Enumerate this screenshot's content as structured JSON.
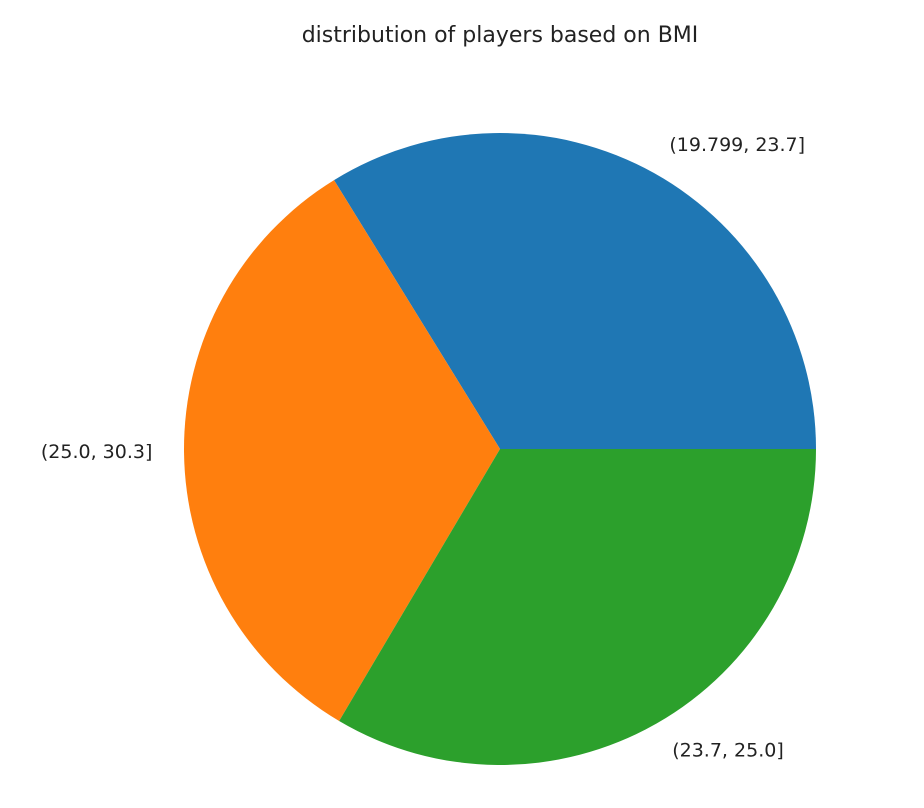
{
  "chart_data": {
    "type": "pie",
    "title": "distribution of players based on BMI",
    "categories": [
      "(19.799, 23.7]",
      "(25.0, 30.3]",
      "(23.7, 25.0]"
    ],
    "values": [
      33.8,
      32.7,
      33.5
    ],
    "colors": [
      "#1f77b4",
      "#ff7f0e",
      "#2ca02c"
    ]
  }
}
